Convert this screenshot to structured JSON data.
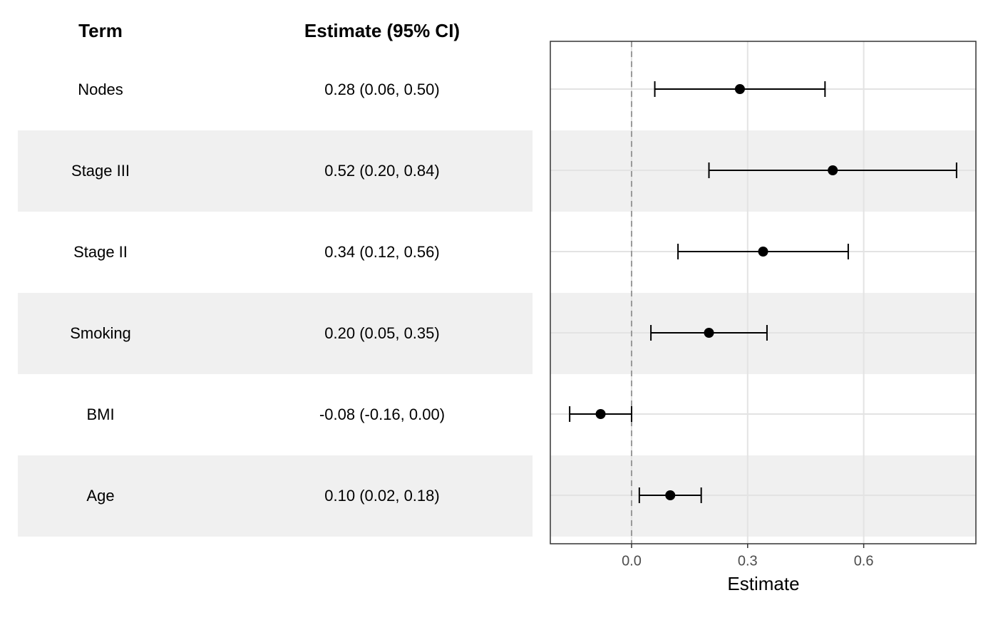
{
  "chart_data": {
    "type": "forest",
    "column_headers": [
      "Term",
      "Estimate (95% CI)"
    ],
    "categories": [
      "Nodes",
      "Stage III",
      "Stage II",
      "Smoking",
      "BMI",
      "Age"
    ],
    "values": [
      0.28,
      0.52,
      0.34,
      0.2,
      -0.08,
      0.1
    ],
    "lower": [
      0.06,
      0.2,
      0.12,
      0.05,
      -0.16,
      0.02
    ],
    "upper": [
      0.5,
      0.84,
      0.56,
      0.35,
      0.0,
      0.18
    ],
    "value_labels": [
      "0.28 (0.06, 0.50)",
      "0.52 (0.20, 0.84)",
      "0.34 (0.12, 0.56)",
      "0.20 (0.05, 0.35)",
      "-0.08 (-0.16, 0.00)",
      "0.10 (0.02, 0.18)"
    ],
    "xlabel": "Estimate",
    "xlim": [
      -0.21,
      0.89
    ],
    "xticks": [
      {
        "value": 0,
        "label": "0.0"
      },
      0.3,
      0.6
    ],
    "reference_line": 0,
    "color": "#000000",
    "stripe_color": "#f0f0f0",
    "grid": true
  }
}
